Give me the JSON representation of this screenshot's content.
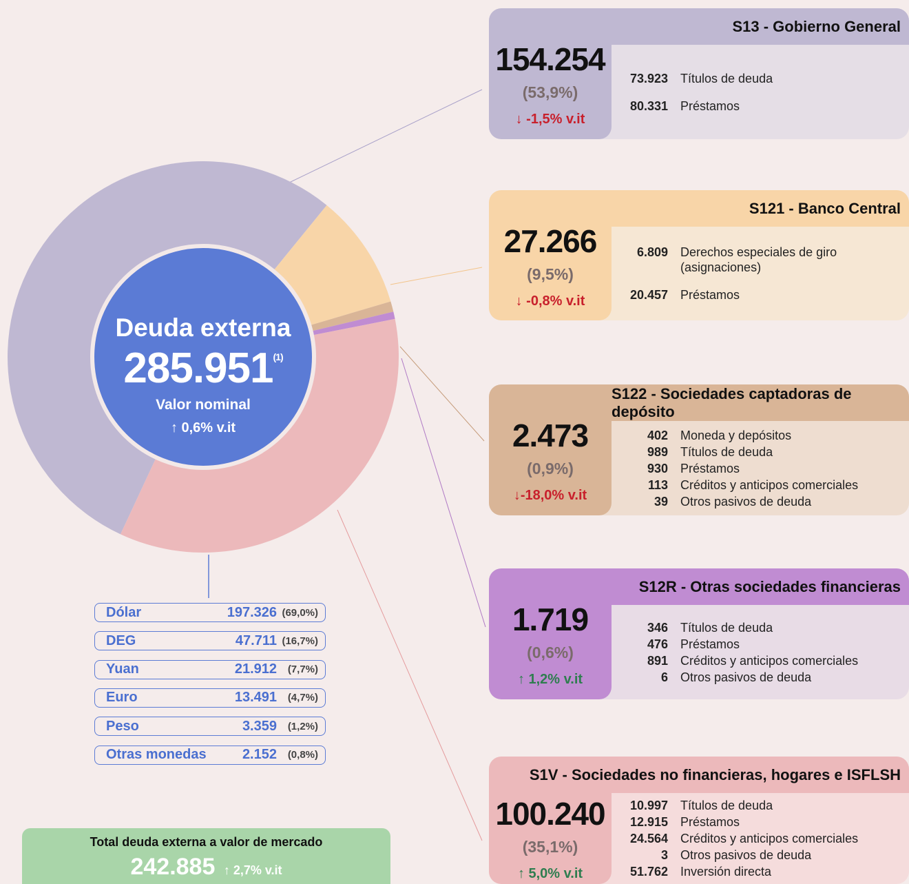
{
  "chart_data": {
    "type": "pie",
    "categories": [
      "S13 - Gobierno General",
      "S121 - Banco Central",
      "S122 - Sociedades captadoras de depósito",
      "S12R - Otras sociedades financieras",
      "S1V - Sociedades no financieras, hogares e ISFLSH"
    ],
    "values": [
      154254,
      27266,
      2473,
      1719,
      100240
    ],
    "value_labels": [
      "154.254",
      "27.266",
      "2.473",
      "1.719",
      "100.240"
    ],
    "colors": [
      "#bfb8d2",
      "#f8d5a8",
      "#d9b597",
      "#c08cd2",
      "#ecb9bb"
    ]
  },
  "center": {
    "title": "Deuda externa",
    "value": "285.951",
    "note": "(1)",
    "subtitle": "Valor nominal",
    "change": "↑ 0,6% v.it"
  },
  "sectors": [
    {
      "share": "(53,9%)",
      "change": "↓ -1,5% v.it",
      "items": [
        {
          "amount": "73.923",
          "label": "Títulos de deuda"
        },
        {
          "amount": "80.331",
          "label": "Préstamos"
        }
      ]
    },
    {
      "share": "(9,5%)",
      "change": "↓ -0,8% v.it",
      "items": [
        {
          "amount": "6.809",
          "label": "Derechos especiales de giro (asignaciones)"
        },
        {
          "amount": "20.457",
          "label": "Préstamos"
        }
      ]
    },
    {
      "share": "(0,9%)",
      "change": "↓-18,0% v.it",
      "items": [
        {
          "amount": "402",
          "label": "Moneda y depósitos"
        },
        {
          "amount": "989",
          "label": "Títulos de deuda"
        },
        {
          "amount": "930",
          "label": "Préstamos"
        },
        {
          "amount": "113",
          "label": "Créditos y anticipos comerciales"
        },
        {
          "amount": "39",
          "label": "Otros pasivos de deuda"
        }
      ]
    },
    {
      "share": "(0,6%)",
      "change": "↑ 1,2% v.it",
      "items": [
        {
          "amount": "346",
          "label": "Títulos de deuda"
        },
        {
          "amount": "476",
          "label": "Préstamos"
        },
        {
          "amount": "891",
          "label": "Créditos y anticipos comerciales"
        },
        {
          "amount": "6",
          "label": "Otros pasivos de deuda"
        }
      ]
    },
    {
      "share": "(35,1%)",
      "change": "↑ 5,0% v.it",
      "items": [
        {
          "amount": "10.997",
          "label": "Títulos de deuda"
        },
        {
          "amount": "12.915",
          "label": "Préstamos"
        },
        {
          "amount": "24.564",
          "label": "Créditos y anticipos comerciales"
        },
        {
          "amount": "3",
          "label": "Otros pasivos de deuda"
        },
        {
          "amount": "51.762",
          "label": "Inversión directa"
        }
      ]
    }
  ],
  "currencies": [
    {
      "name": "Dólar",
      "amount": "197.326",
      "share": "(69,0%)"
    },
    {
      "name": "DEG",
      "amount": "47.711",
      "share": "(16,7%)"
    },
    {
      "name": "Yuan",
      "amount": "21.912",
      "share": "(7,7%)"
    },
    {
      "name": "Euro",
      "amount": "13.491",
      "share": "(4,7%)"
    },
    {
      "name": "Peso",
      "amount": "3.359",
      "share": "(1,2%)"
    },
    {
      "name": "Otras monedas",
      "amount": "2.152",
      "share": "(0,8%)"
    }
  ],
  "market": {
    "title": "Total deuda externa a valor de mercado",
    "value": "242.885",
    "change": "↑ 2,7%  v.it"
  }
}
